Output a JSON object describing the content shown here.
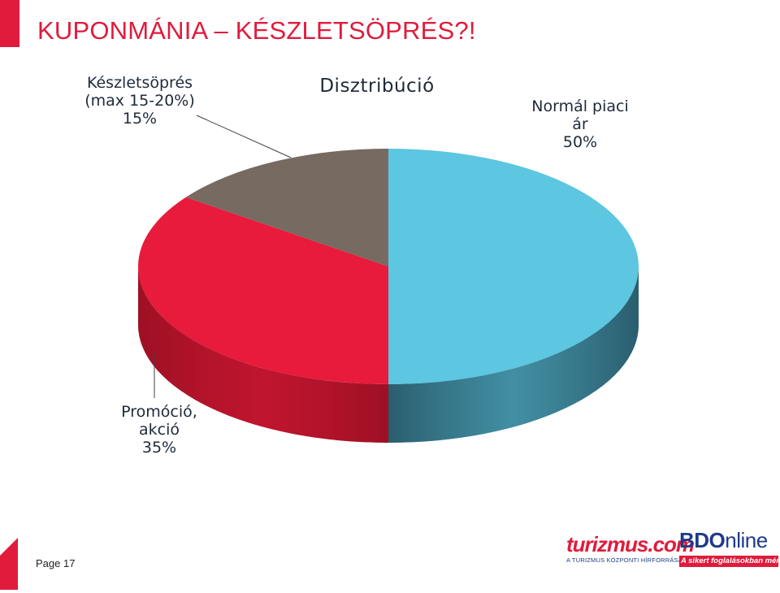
{
  "slide": {
    "title": "KUPONMÁNIA – KÉSZLETSÖPRÉS?!",
    "page_number": "Page 17"
  },
  "colors": {
    "accent": "#E01B3C",
    "title_text": "#E01B3C",
    "label_text": "#1F2A3A",
    "leader_line": "#404040",
    "bdo_blue": "#1E3A8A"
  },
  "chart_data": {
    "type": "pie",
    "style": "3d",
    "title": "Disztribúció",
    "slices": [
      {
        "label_lines": [
          "Normál piaci",
          "ár",
          "50%"
        ],
        "value": 50,
        "top_color": "#5DC6E0",
        "side_color": "#2A5E6E"
      },
      {
        "label_lines": [
          "Promóció,",
          "akció",
          "35%"
        ],
        "value": 35,
        "top_color": "#E81B3C",
        "side_color": "#9E1024"
      },
      {
        "label_lines": [
          "Készletsöprés",
          "(max 15-20%)",
          "15%"
        ],
        "value": 15,
        "top_color": "#776A60",
        "side_color": "#4E463F"
      }
    ],
    "legend": "none"
  },
  "logos": {
    "turizmus": {
      "wordmark": "turizmus.com",
      "tagline": "A TURIZMUS KÖZPONTI HÍRFORRÁSA",
      "color": "#E01B3C",
      "tagline_color": "#1E3A8A"
    },
    "bdo": {
      "wordmark_bdo": "BDO",
      "wordmark_online": "nline",
      "tagline": "A sikert foglalásokban mérjük...",
      "wordmark_color": "#1E3A8A",
      "tagline_bg": "#E01B3C"
    }
  }
}
